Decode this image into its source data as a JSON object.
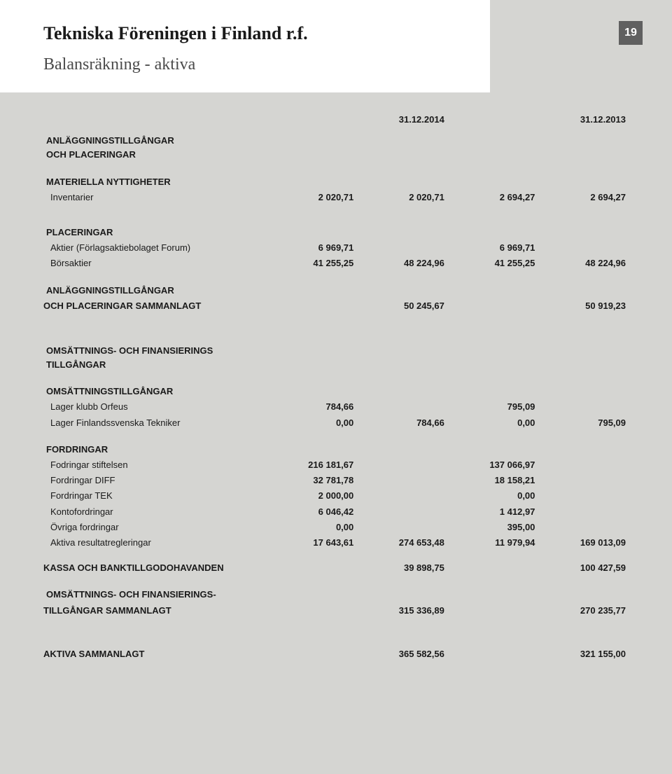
{
  "page_number": "19",
  "title": "Tekniska Föreningen i Finland r.f.",
  "subtitle": "Balansräkning - aktiva",
  "dates": {
    "d1": "31.12.2014",
    "d2": "31.12.2013"
  },
  "sections": {
    "s1": {
      "hdr1": "ANLÄGGNINGSTILLGÅNGAR",
      "hdr2": "OCH PLACERINGAR",
      "mat_hdr": "MATERIELLA NYTTIGHETER",
      "inv": {
        "label": "Inventarier",
        "c1": "2 020,71",
        "c2": "2 020,71",
        "c3": "2 694,27",
        "c4": "2 694,27"
      },
      "plac_hdr": "PLACERINGAR",
      "aktier": {
        "label": "Aktier (Förlagsaktiebolaget Forum)",
        "c1": "6 969,71",
        "c3": "6 969,71"
      },
      "bors": {
        "label": "Börsaktier",
        "c1": "41 255,25",
        "c2": "48 224,96",
        "c3": "41 255,25",
        "c4": "48 224,96"
      },
      "sum_hdr1": "ANLÄGGNINGSTILLGÅNGAR",
      "sum_hdr2": "OCH PLACERINGAR SAMMANLAGT",
      "sum": {
        "c2": "50 245,67",
        "c4": "50 919,23"
      }
    },
    "s2": {
      "hdr1": "OMSÄTTNINGS- OCH FINANSIERINGS",
      "hdr2": "TILLGÅNGAR",
      "oms_hdr": "OMSÄTTNINGSTILLGÅNGAR",
      "lager1": {
        "label": "Lager klubb Orfeus",
        "c1": "784,66",
        "c3": "795,09"
      },
      "lager2": {
        "label": "Lager Finlandssvenska Tekniker",
        "c1": "0,00",
        "c2": "784,66",
        "c3": "0,00",
        "c4": "795,09"
      },
      "ford_hdr": "FORDRINGAR",
      "f1": {
        "label": "Fodringar stiftelsen",
        "c1": "216 181,67",
        "c3": "137 066,97"
      },
      "f2": {
        "label": "Fordringar DIFF",
        "c1": "32 781,78",
        "c3": "18 158,21"
      },
      "f3": {
        "label": "Fordringar TEK",
        "c1": "2 000,00",
        "c3": "0,00"
      },
      "f4": {
        "label": "Kontofordringar",
        "c1": "6 046,42",
        "c3": "1 412,97"
      },
      "f5": {
        "label": "Övriga fordringar",
        "c1": "0,00",
        "c3": "395,00"
      },
      "f6": {
        "label": "Aktiva resultatregleringar",
        "c1": "17 643,61",
        "c2": "274 653,48",
        "c3": "11 979,94",
        "c4": "169 013,09"
      },
      "kassa": {
        "label": "KASSA OCH BANKTILLGODOHAVANDEN",
        "c2": "39 898,75",
        "c4": "100 427,59"
      },
      "of_sum1": "OMSÄTTNINGS- OCH FINANSIERINGS-",
      "of_sum2": "TILLGÅNGAR SAMMANLAGT",
      "of_sum": {
        "c2": "315 336,89",
        "c4": "270 235,77"
      }
    },
    "total": {
      "label": "AKTIVA SAMMANLAGT",
      "c2": "365 582,56",
      "c4": "321 155,00"
    }
  },
  "colors": {
    "page_bg": "#d5d5d2",
    "header_bg": "#ffffff",
    "badge_bg": "#606060",
    "text": "#1a1a1a"
  }
}
